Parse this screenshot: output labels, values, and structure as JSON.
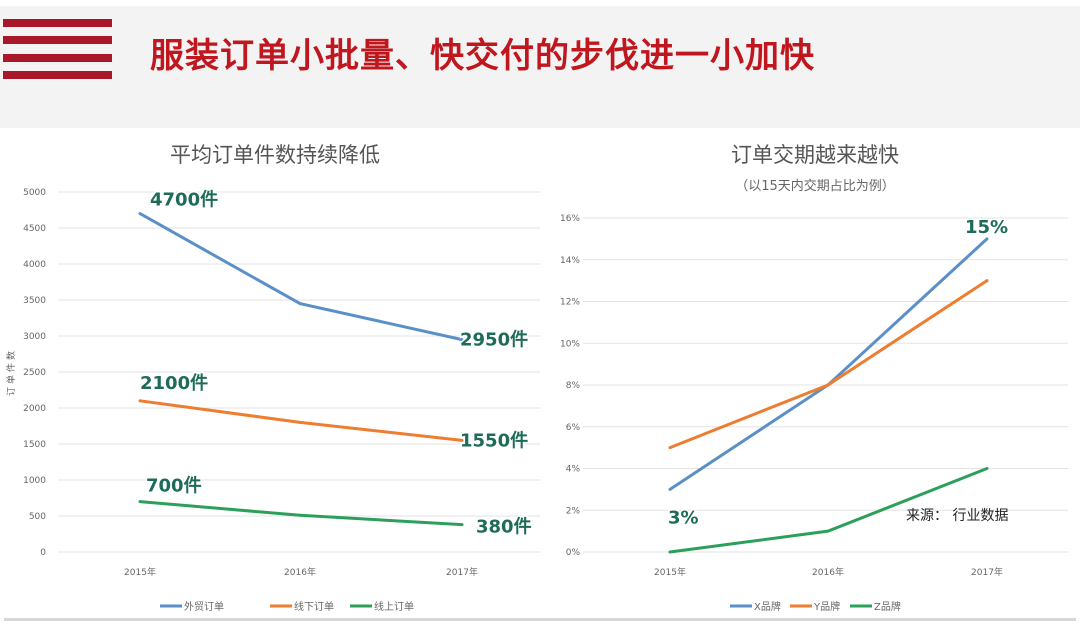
{
  "header": {
    "title": "服装订单小批量、快交付的步伐进一小加快",
    "accent_color": "#c0171f"
  },
  "chart_data": [
    {
      "type": "line",
      "title": "平均订单件数持续降低",
      "ylabel": "订单件数",
      "xlabel": "",
      "categories": [
        "2015年",
        "2016年",
        "2017年"
      ],
      "ylim": [
        0,
        5000
      ],
      "yticks": [
        "0",
        "500",
        "1000",
        "1500",
        "2000",
        "2500",
        "3000",
        "3500",
        "4000",
        "4500",
        "5000"
      ],
      "grid": true,
      "legend": "bottom",
      "series": [
        {
          "name": "外贸订单",
          "color": "#5b8fc7",
          "values": [
            4700,
            3450,
            2950
          ]
        },
        {
          "name": "线下订单",
          "color": "#ed7d31",
          "values": [
            2100,
            1800,
            1550
          ]
        },
        {
          "name": "线上订单",
          "color": "#2ca05a",
          "values": [
            700,
            510,
            380
          ]
        }
      ],
      "annotations": [
        {
          "text": "4700件",
          "series": 0,
          "point": 0
        },
        {
          "text": "2950件",
          "series": 0,
          "point": 2
        },
        {
          "text": "2100件",
          "series": 1,
          "point": 0
        },
        {
          "text": "1550件",
          "series": 1,
          "point": 2
        },
        {
          "text": "700件",
          "series": 2,
          "point": 0
        },
        {
          "text": "380件",
          "series": 2,
          "point": 2
        }
      ]
    },
    {
      "type": "line",
      "title": "订单交期越来越快",
      "subtitle": "（以15天内交期占比为例）",
      "xlabel": "",
      "ylabel": "",
      "categories": [
        "2015年",
        "2016年",
        "2017年"
      ],
      "ylim": [
        0,
        16
      ],
      "yticks": [
        "0%",
        "2%",
        "4%",
        "6%",
        "8%",
        "10%",
        "12%",
        "14%",
        "16%"
      ],
      "grid": true,
      "legend": "bottom",
      "series": [
        {
          "name": "X品牌",
          "color": "#5b8fc7",
          "values": [
            3,
            8,
            15
          ]
        },
        {
          "name": "Y品牌",
          "color": "#ed7d31",
          "values": [
            5,
            8,
            13
          ]
        },
        {
          "name": "Z品牌",
          "color": "#2ca05a",
          "values": [
            0,
            1,
            4
          ]
        }
      ],
      "annotations": [
        {
          "text": "3%",
          "series": 0,
          "point": 0
        },
        {
          "text": "15%",
          "series": 0,
          "point": 2
        }
      ],
      "source": "来源：  行业数据"
    }
  ]
}
